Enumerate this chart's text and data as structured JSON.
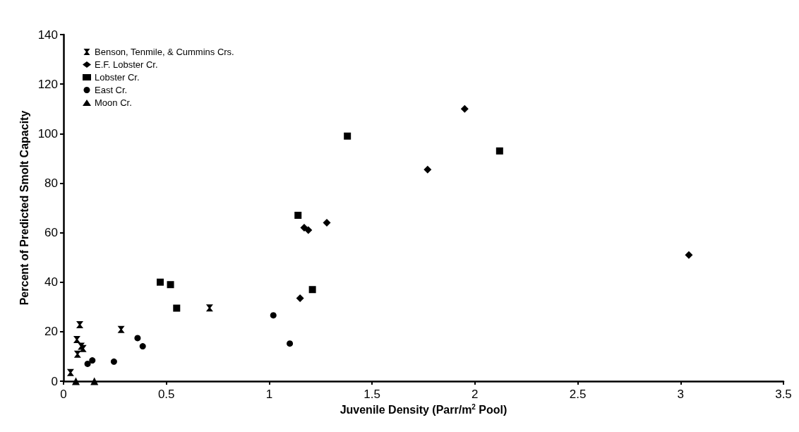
{
  "chart_data": {
    "type": "scatter",
    "xlabel": "Juvenile Density (Parr/m$^{2}$ Pool)",
    "ylabel": "Percent of Predicted Smolt Capacity",
    "xlim": [
      0,
      3.5
    ],
    "xticks": [
      0,
      0.5,
      1,
      1.5,
      2,
      2.5,
      3,
      3.5
    ],
    "ylim": [
      0,
      140
    ],
    "yticks": [
      0,
      20,
      40,
      60,
      80,
      100,
      120,
      140
    ],
    "grid": false,
    "legend": "top left",
    "series": [
      {
        "name": "Benson, Tenmile, & Cummins Crs.",
        "color": "#000000",
        "marker": "cross",
        "x": [
          0.034,
          0.065,
          0.068,
          0.079,
          0.086,
          0.095,
          0.28,
          0.71
        ],
        "values": [
          3.5,
          16.8,
          10.9,
          22.8,
          14.1,
          13.2,
          20.9,
          29.6
        ]
      },
      {
        "name": "E.F. Lobster Cr.",
        "color": "#000000",
        "marker": "diamond",
        "x": [
          1.15,
          1.17,
          1.19,
          1.28,
          1.77,
          1.95,
          3.04
        ],
        "values": [
          33.5,
          62,
          61,
          64,
          85.5,
          110,
          51
        ]
      },
      {
        "name": "Lobster Cr.",
        "color": "#000000",
        "marker": "square",
        "x": [
          0.47,
          0.52,
          0.55,
          1.14,
          1.21,
          1.38,
          2.12
        ],
        "values": [
          40,
          39,
          29.5,
          67,
          37,
          99,
          93
        ]
      },
      {
        "name": "East Cr.",
        "color": "#000000",
        "marker": "circle",
        "x": [
          0.117,
          0.14,
          0.245,
          0.36,
          0.385,
          1.02,
          1.1
        ],
        "values": [
          7,
          8.4,
          7.9,
          17.4,
          14.1,
          26.6,
          15.2
        ]
      },
      {
        "name": "Moon Cr.",
        "color": "#000000",
        "marker": "triangle",
        "x": [
          0.06,
          0.15
        ],
        "values": [
          0,
          0
        ]
      }
    ]
  }
}
